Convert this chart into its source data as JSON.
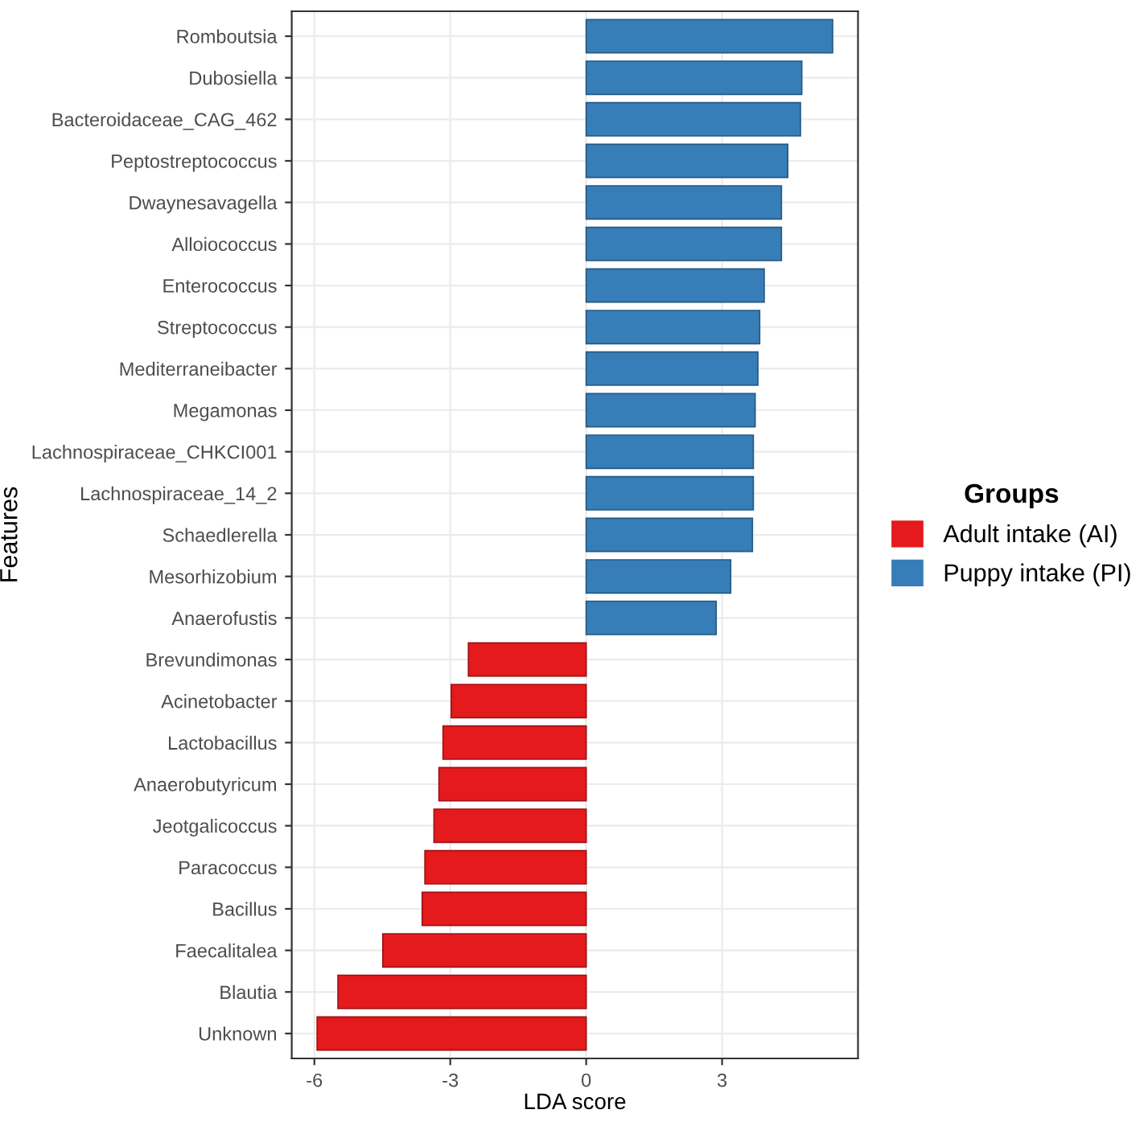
{
  "chart_data": {
    "type": "bar",
    "orientation": "horizontal",
    "xlabel": "LDA score",
    "ylabel": "Features",
    "legend_title": "Groups",
    "legend": "right",
    "grid": true,
    "categories": [
      "Romboutsia",
      "Dubosiella",
      "Bacteroidaceae_CAG_462",
      "Peptostreptococcus",
      "Dwaynesavagella",
      "Alloiococcus",
      "Enterococcus",
      "Streptococcus",
      "Mediterraneibacter",
      "Megamonas",
      "Lachnospiraceae_CHKCI001",
      "Lachnospiraceae_14_2",
      "Schaedlerella",
      "Mesorhizobium",
      "Anaerofustis",
      "Brevundimonas",
      "Acinetobacter",
      "Lactobacillus",
      "Anaerobutyricum",
      "Jeotgalicoccus",
      "Paracoccus",
      "Bacillus",
      "Faecalitalea",
      "Blautia",
      "Unknown"
    ],
    "series": [
      {
        "name": "Adult intake (AI)",
        "color": "#e41a1c",
        "values": [
          null,
          null,
          null,
          null,
          null,
          null,
          null,
          null,
          null,
          null,
          null,
          null,
          null,
          null,
          null,
          -2.6,
          -2.98,
          -3.16,
          -3.25,
          -3.36,
          -3.56,
          -3.62,
          -4.49,
          -5.48,
          -5.94
        ]
      },
      {
        "name": "Puppy intake (PI)",
        "color": "#377eb8",
        "values": [
          5.44,
          4.76,
          4.73,
          4.45,
          4.31,
          4.31,
          3.93,
          3.83,
          3.79,
          3.73,
          3.69,
          3.69,
          3.67,
          3.19,
          2.87,
          null,
          null,
          null,
          null,
          null,
          null,
          null,
          null,
          null,
          null
        ]
      }
    ],
    "xlim": [
      -6.5,
      6.0
    ],
    "xticks": [
      -6,
      -3,
      0,
      3
    ]
  }
}
